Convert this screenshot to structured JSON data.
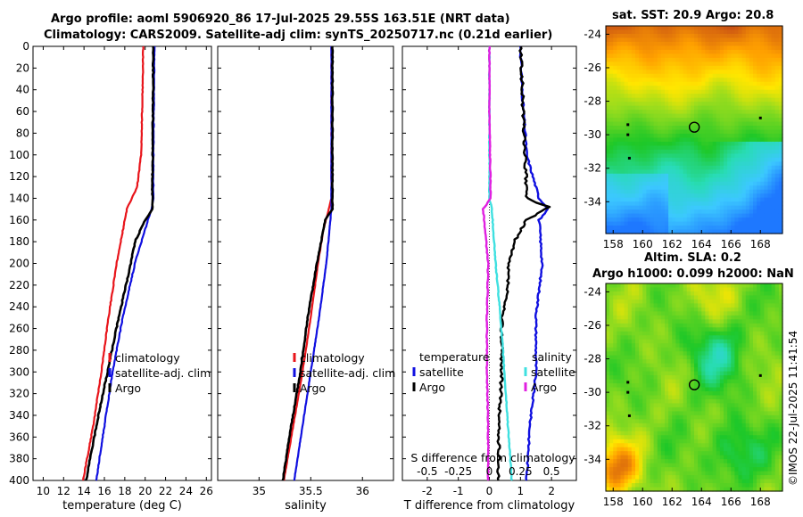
{
  "titles": {
    "line1": "Argo profile: aoml 5906920_86 17-Jul-2025 29.55S 163.51E (NRT data)",
    "line2": "Climatology: CARS2009. Satellite-adj clim: synTS_20250717.nc (0.21d earlier)",
    "sst_map": "sat. SST: 20.9 Argo: 20.8",
    "sla_map_line1": "Altim. SLA: 0.2",
    "sla_map_line2": "Argo h1000: 0.099 h2000: NaN"
  },
  "copyright": "©IMOS 22-Jul-2025 11:41:54",
  "colors": {
    "climatology": "#e8151b",
    "satellite": "#1010e0",
    "argo": "#000000",
    "s_satellite": "#3fe0e0",
    "s_argo": "#e020e0"
  },
  "chart_data": [
    {
      "type": "line",
      "name": "temperature-profile",
      "xlabel": "temperature (deg C)",
      "ylabel": "",
      "xlim": [
        9,
        26.5
      ],
      "ylim": [
        400,
        0
      ],
      "xticks": [
        10,
        12,
        14,
        16,
        18,
        20,
        22,
        24,
        26
      ],
      "yticks": [
        0,
        20,
        40,
        60,
        80,
        100,
        120,
        140,
        160,
        180,
        200,
        220,
        240,
        260,
        280,
        300,
        320,
        340,
        360,
        380,
        400
      ],
      "legend": [
        "climatology",
        "satellite-adj. clim",
        "Argo"
      ],
      "series": [
        {
          "name": "climatology",
          "depth": [
            0,
            40,
            100,
            130,
            150,
            200,
            250,
            300,
            350,
            400
          ],
          "values": [
            19.8,
            19.75,
            19.6,
            19.2,
            18.2,
            17.2,
            16.4,
            15.7,
            14.9,
            13.9
          ]
        },
        {
          "name": "satellite-adj. clim",
          "depth": [
            0,
            50,
            100,
            140,
            150,
            200,
            250,
            300,
            350,
            400
          ],
          "values": [
            20.9,
            20.85,
            20.8,
            20.8,
            20.6,
            19.0,
            17.8,
            16.8,
            16.0,
            15.2
          ]
        },
        {
          "name": "Argo",
          "depth": [
            0,
            150,
            160,
            180,
            200,
            250,
            300,
            350,
            400
          ],
          "values": [
            20.8,
            20.7,
            20.0,
            19.0,
            18.6,
            17.4,
            16.3,
            15.2,
            14.2
          ]
        }
      ]
    },
    {
      "type": "line",
      "name": "salinity-profile",
      "xlabel": "salinity",
      "ylabel": "",
      "xlim": [
        34.6,
        36.3
      ],
      "ylim": [
        400,
        0
      ],
      "xticks": [
        35,
        35.5,
        36
      ],
      "xtick_labels": [
        "35",
        "35.5",
        "36"
      ],
      "legend": [
        "climatology",
        "satellite-adj. clim",
        "Argo"
      ],
      "series": [
        {
          "name": "climatology",
          "depth": [
            0,
            140,
            170,
            200,
            250,
            300,
            350,
            400
          ],
          "values": [
            35.7,
            35.7,
            35.62,
            35.57,
            35.5,
            35.42,
            35.33,
            35.24
          ]
        },
        {
          "name": "satellite-adj. clim",
          "depth": [
            0,
            150,
            180,
            200,
            250,
            300,
            350,
            400
          ],
          "values": [
            35.7,
            35.7,
            35.67,
            35.65,
            35.58,
            35.5,
            35.42,
            35.34
          ]
        },
        {
          "name": "Argo",
          "depth": [
            0,
            150,
            160,
            200,
            250,
            300,
            350,
            400
          ],
          "values": [
            35.71,
            35.71,
            35.64,
            35.56,
            35.47,
            35.4,
            35.31,
            35.23
          ]
        }
      ]
    },
    {
      "type": "line",
      "name": "difference-profile",
      "xlabel": "T difference from climatology",
      "xlabel_top": "S difference from climatology",
      "xlim": [
        -2.8,
        2.8
      ],
      "ylim": [
        400,
        0
      ],
      "xticks": [
        -2,
        -1,
        0,
        1,
        2
      ],
      "xtick_labels": [
        "-2",
        "-1",
        "0",
        "1",
        "2"
      ],
      "s_ticks": [
        -0.5,
        -0.25,
        0,
        0.25,
        0.5
      ],
      "s_tick_labels": [
        "-0.5",
        "-0.25",
        "0",
        "0.25",
        "0.5"
      ],
      "legend_left_title": "temperature",
      "legend_left": [
        "satellite",
        "Argo"
      ],
      "legend_right_title": "salinity",
      "legend_right": [
        "satellite",
        "Argo"
      ],
      "series": [
        {
          "name": "T satellite",
          "depth": [
            0,
            40,
            100,
            140,
            150,
            160,
            200,
            250,
            300,
            350,
            400
          ],
          "values": [
            1.0,
            1.05,
            1.2,
            1.6,
            1.9,
            1.6,
            1.7,
            1.5,
            1.5,
            1.3,
            1.2
          ]
        },
        {
          "name": "T Argo",
          "depth": [
            0,
            140,
            148,
            160,
            180,
            200,
            220,
            250,
            300,
            350,
            400
          ],
          "values": [
            1.0,
            1.2,
            1.9,
            1.2,
            0.8,
            0.6,
            0.6,
            0.4,
            0.4,
            0.3,
            0.3
          ]
        },
        {
          "name": "S satellite",
          "depth": [
            0,
            60,
            140,
            150,
            200,
            250,
            300,
            350,
            400
          ],
          "values": [
            0.0,
            0.0,
            0.0,
            0.02,
            0.05,
            0.09,
            0.12,
            0.15,
            0.18
          ]
        },
        {
          "name": "S Argo",
          "depth": [
            0,
            60,
            140,
            150,
            200,
            250,
            300,
            350,
            400
          ],
          "values": [
            0.0,
            0.0,
            0.01,
            -0.05,
            -0.01,
            -0.02,
            -0.02,
            -0.01,
            -0.01
          ]
        }
      ]
    },
    {
      "type": "heatmap",
      "name": "sst-map",
      "title": "sat. SST: 20.9 Argo: 20.8",
      "xlim": [
        157.5,
        169.5
      ],
      "ylim": [
        -35.9,
        -23.5
      ],
      "xticks": [
        158,
        160,
        162,
        164,
        166,
        168
      ],
      "yticks": [
        -24,
        -26,
        -28,
        -30,
        -32,
        -34
      ],
      "xtick_labels": [
        "158",
        "160",
        "162",
        "164",
        "166",
        "168"
      ],
      "ytick_labels": [
        "-24",
        "-26",
        "-28",
        "-30",
        "-32",
        "-34"
      ],
      "marker": {
        "lon": 163.51,
        "lat": -29.55
      }
    },
    {
      "type": "heatmap",
      "name": "sla-map",
      "title": "Altim. SLA: 0.2 / Argo h1000: 0.099 h2000: NaN",
      "xlim": [
        157.5,
        169.5
      ],
      "ylim": [
        -35.9,
        -23.5
      ],
      "xticks": [
        158,
        160,
        162,
        164,
        166,
        168
      ],
      "yticks": [
        -24,
        -26,
        -28,
        -30,
        -32,
        -34
      ],
      "xtick_labels": [
        "158",
        "160",
        "162",
        "164",
        "166",
        "168"
      ],
      "ytick_labels": [
        "-24",
        "-26",
        "-28",
        "-30",
        "-32",
        "-34"
      ],
      "marker": {
        "lon": 163.51,
        "lat": -29.55
      }
    }
  ]
}
